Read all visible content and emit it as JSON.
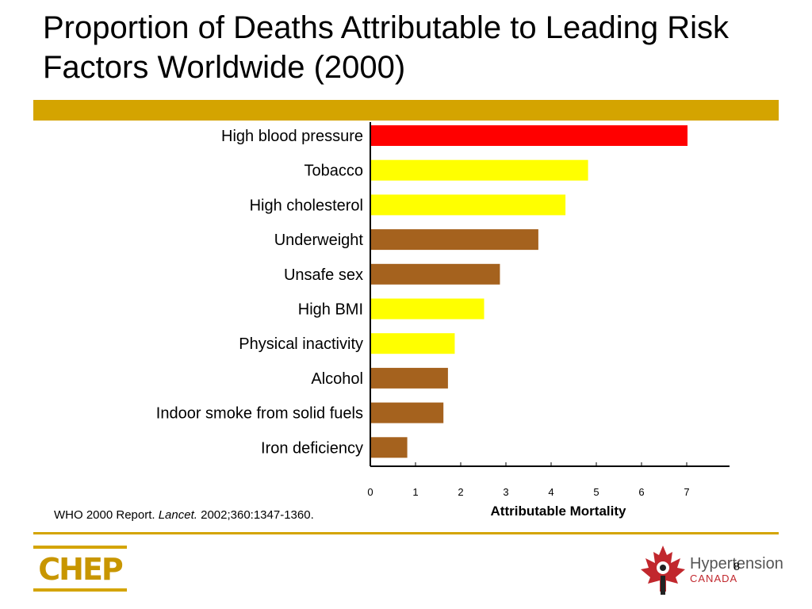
{
  "slide": {
    "title": "Proportion of Deaths Attributable to Leading Risk Factors Worldwide (2000)",
    "reference_prefix": "WHO 2000 Report. ",
    "reference_journal": "Lancet.",
    "reference_suffix": " 2002;360:1347-1360.",
    "page_number": "8"
  },
  "logos": {
    "chep": "CHEP",
    "hypertension_name": "Hypertension",
    "hypertension_sub": "CANADA"
  },
  "colors": {
    "accent_gold": "#d4a400",
    "red": "#ff0000",
    "yellow": "#ffff00",
    "brown": "#a5621e"
  },
  "chart_data": {
    "type": "bar",
    "orientation": "horizontal",
    "categories": [
      "High blood pressure",
      "Tobacco",
      "High cholesterol",
      "Underweight",
      "Unsafe sex",
      "High BMI",
      "Physical inactivity",
      "Alcohol",
      "Indoor smoke from solid fuels",
      "Iron deficiency"
    ],
    "values": [
      7.0,
      4.8,
      4.3,
      3.7,
      2.85,
      2.5,
      1.85,
      1.7,
      1.6,
      0.8
    ],
    "bar_colors": [
      "#ff0000",
      "#ffff00",
      "#ffff00",
      "#a5621e",
      "#a5621e",
      "#ffff00",
      "#ffff00",
      "#a5621e",
      "#a5621e",
      "#a5621e"
    ],
    "xlabel": "Attributable Mortality",
    "ylabel": "",
    "xlim": [
      0,
      7.8
    ],
    "xticks": [
      0,
      1,
      2,
      3,
      4,
      5,
      6,
      7
    ],
    "grid": false
  }
}
